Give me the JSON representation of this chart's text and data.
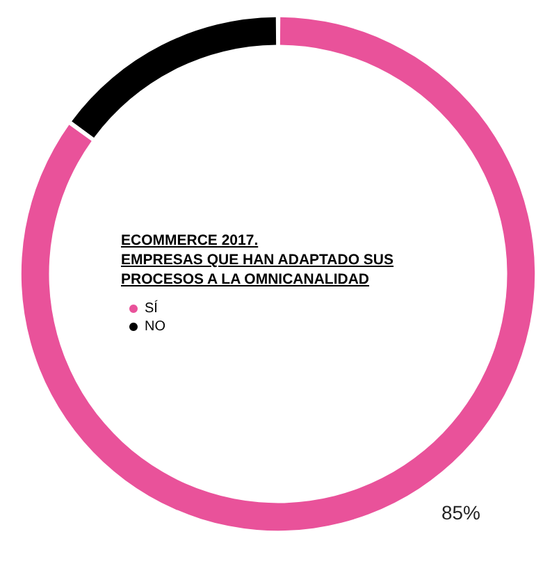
{
  "chart_data": {
    "type": "donut",
    "title": "ECOMMERCE 2017.\nEMPRESAS QUE HAN ADAPTADO SUS PROCESOS A LA OMNICANALIDAD",
    "categories": [
      "SÍ",
      "NO"
    ],
    "values": [
      85,
      15
    ],
    "colors": [
      "#e9529a",
      "#000000"
    ],
    "value_labels": [
      "85%",
      null
    ],
    "legend": "left"
  }
}
